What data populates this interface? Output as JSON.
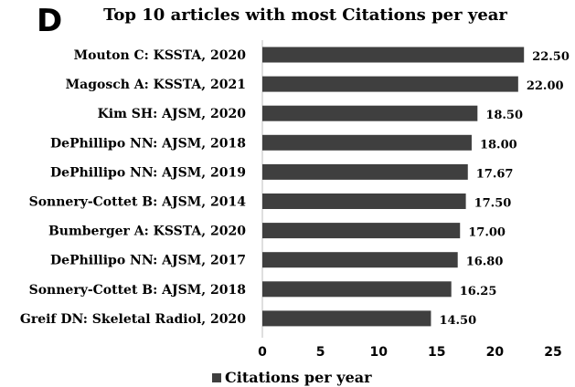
{
  "panel_letter": "D",
  "chart_data": {
    "type": "bar",
    "orientation": "horizontal",
    "title": "Top 10 articles with most Citations per year",
    "categories": [
      "Mouton C: KSSTA, 2020",
      "Magosch A: KSSTA, 2021",
      "Kim SH: AJSM, 2020",
      "DePhillipo NN: AJSM, 2018",
      "DePhillipo NN: AJSM, 2019",
      "Sonnery-Cottet B: AJSM, 2014",
      "Bumberger A: KSSTA, 2020",
      "DePhillipo NN: AJSM, 2017",
      "Sonnery-Cottet B: AJSM, 2018",
      "Greif DN: Skeletal Radiol, 2020"
    ],
    "series": [
      {
        "name": "Citations per year",
        "values": [
          22.5,
          22.0,
          18.5,
          18.0,
          17.67,
          17.5,
          17.0,
          16.8,
          16.25,
          14.5
        ],
        "labels": [
          "22.50",
          "22.00",
          "18.50",
          "18.00",
          "17.67",
          "17.50",
          "17.00",
          "16.80",
          "16.25",
          "14.50"
        ],
        "color": "#3f3f3f"
      }
    ],
    "xlim": [
      0,
      25
    ],
    "xticks": [
      "0",
      "5",
      "10",
      "15",
      "20",
      "25"
    ],
    "grid": false,
    "legend_position": "bottom"
  }
}
